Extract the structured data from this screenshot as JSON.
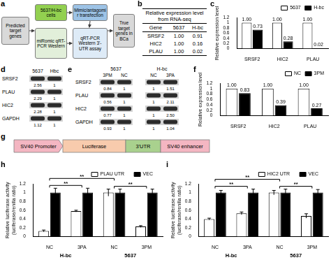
{
  "panel_a": {
    "letter": "a",
    "boxes": [
      "Predicted target genes",
      "5637/H-bc cells",
      "Mimic/antagomir transfection",
      "miRomic qRT-PCR Western",
      "qRT-PCR Western 3'-UTR assay",
      "True target genes in BCa"
    ]
  },
  "panel_b": {
    "letter": "b",
    "title": "Relative expression level from RNA-seq",
    "header": [
      "Gene",
      "5637",
      "H-bc"
    ],
    "rows": [
      [
        "SRSF2",
        "1.00",
        "0.91"
      ],
      [
        "HIC2",
        "1.00",
        "0.16"
      ],
      [
        "PLAU",
        "1.00",
        "0.02"
      ]
    ]
  },
  "panel_d": {
    "letter": "d",
    "lanes": [
      "5637",
      "Hbc"
    ],
    "rows": [
      {
        "label": "SRSF2",
        "values": [
          "2.56",
          "1"
        ]
      },
      {
        "label": "PLAU",
        "values": [
          "2.29",
          "1"
        ]
      },
      {
        "label": "HIC2",
        "values": [
          "2.28",
          "1"
        ]
      },
      {
        "label": "GAPDH",
        "values": [
          "1.12",
          "1"
        ]
      }
    ]
  },
  "panel_e": {
    "letter": "e",
    "groups": [
      {
        "label": "5637",
        "lanes": [
          "3PM",
          "NC"
        ]
      },
      {
        "label": "H-bc",
        "lanes": [
          "NC",
          "3PA"
        ]
      }
    ],
    "rows": [
      {
        "label": "SRSF2",
        "values": [
          "0.84",
          "1",
          "1",
          "1.51"
        ]
      },
      {
        "label": "PLAU",
        "values": [
          "0.56",
          "1",
          "1",
          "2.11"
        ]
      },
      {
        "label": "HIC2",
        "values": [
          "0.77",
          "1",
          "1",
          "2.50"
        ]
      },
      {
        "label": "GAPDH",
        "values": [
          "0.93",
          "1",
          "1",
          "1.04"
        ]
      }
    ]
  },
  "panel_g": {
    "letter": "g",
    "elements": [
      "SV40 Promoter",
      "Luciferase",
      "3'UTR",
      "SV40 enhancer"
    ]
  },
  "chart_data": [
    {
      "letter": "c",
      "type": "bar",
      "categories": [
        "SRSF2",
        "HIC2",
        "PLAU"
      ],
      "series": [
        {
          "name": "5637",
          "color": "#ffffff",
          "values": [
            1,
            1,
            1
          ],
          "value_labels": [
            "1.00",
            "1.00",
            "1.00"
          ]
        },
        {
          "name": "H-bc",
          "color": "#000000",
          "values": [
            0.73,
            0.28,
            0.02
          ],
          "value_labels": [
            "0.73",
            "0.28",
            "0.02"
          ]
        }
      ],
      "y_label": "Relative expression level",
      "ylim": [
        0,
        1.2
      ],
      "yticks": [
        0,
        0.2,
        0.4,
        0.6,
        0.8,
        1,
        1.2
      ],
      "grid": false,
      "legend": "top-right",
      "data_labels": true
    },
    {
      "letter": "f",
      "type": "bar",
      "categories": [
        "SRSF2",
        "HIC2",
        "PLAU"
      ],
      "series": [
        {
          "name": "NC",
          "color": "#ffffff",
          "values": [
            1,
            1,
            1
          ],
          "value_labels": [
            "1.00",
            "1.00",
            "1.00"
          ]
        },
        {
          "name": "3PM",
          "color": "#000000",
          "values": [
            0.83,
            0.39,
            0.27
          ],
          "value_labels": [
            "0.83",
            "0.39",
            "0.27"
          ]
        }
      ],
      "y_label": "Relative expression level",
      "ylim": [
        0,
        1.2
      ],
      "yticks": [
        0,
        0.2,
        0.4,
        0.6,
        0.8,
        1,
        1.2
      ],
      "grid": false,
      "legend": "top-right",
      "data_labels": true
    },
    {
      "letter": "h",
      "type": "bar",
      "categories": [
        "NC",
        "3PA",
        "NC",
        "3PM"
      ],
      "groups": [
        {
          "label": "H-bc",
          "from": 0,
          "to": 1
        },
        {
          "label": "5637",
          "from": 2,
          "to": 3
        }
      ],
      "series": [
        {
          "name": "PLAU UTR",
          "color": "#ffffff",
          "values": [
            0.13,
            0.58,
            1,
            0.23
          ],
          "errors": [
            0.02,
            0.02,
            0.08,
            0.02
          ]
        },
        {
          "name": "VEC",
          "color": "#000000",
          "values": [
            1,
            1,
            1,
            1
          ],
          "errors": [
            0.1,
            0.1,
            0.08,
            0.08
          ]
        }
      ],
      "y_label": [
        "Relative luciferase activity",
        "(luciferase/renilla ratio)"
      ],
      "ylim": [
        0,
        1.2
      ],
      "yticks": [
        0,
        0.2,
        0.4,
        0.6,
        0.8,
        1,
        1.2
      ],
      "grid": false,
      "legend": "top-right",
      "comparisons": [
        {
          "from": 0,
          "to": 1,
          "label": "**"
        },
        {
          "from": 0,
          "to": 2,
          "label": "**"
        },
        {
          "from": 2,
          "to": 3,
          "label": "**"
        }
      ]
    },
    {
      "letter": "i",
      "type": "bar",
      "categories": [
        "NC",
        "3PA",
        "NC",
        "3PM"
      ],
      "groups": [
        {
          "label": "H-bc",
          "from": 0,
          "to": 1
        },
        {
          "label": "5637",
          "from": 2,
          "to": 3
        }
      ],
      "series": [
        {
          "name": "HIC2 UTR",
          "color": "#ffffff",
          "values": [
            0.4,
            0.53,
            1,
            0.47
          ],
          "errors": [
            0.02,
            0.03,
            0.05,
            0.05
          ]
        },
        {
          "name": "VEC",
          "color": "#000000",
          "values": [
            1,
            1,
            1,
            1
          ],
          "errors": [
            0.05,
            0.08,
            0.08,
            0.07
          ]
        }
      ],
      "y_label": [
        "Relative luciferase activity",
        "(luciferase/renilla ratio)"
      ],
      "ylim": [
        0,
        1.2
      ],
      "yticks": [
        0,
        0.2,
        0.4,
        0.6,
        0.8,
        1,
        1.2
      ],
      "grid": false,
      "legend": "top-right",
      "comparisons": [
        {
          "from": 0,
          "to": 1,
          "label": "**"
        },
        {
          "from": 0,
          "to": 2,
          "label": "**"
        },
        {
          "from": 2,
          "to": 3,
          "label": "**"
        }
      ]
    }
  ]
}
